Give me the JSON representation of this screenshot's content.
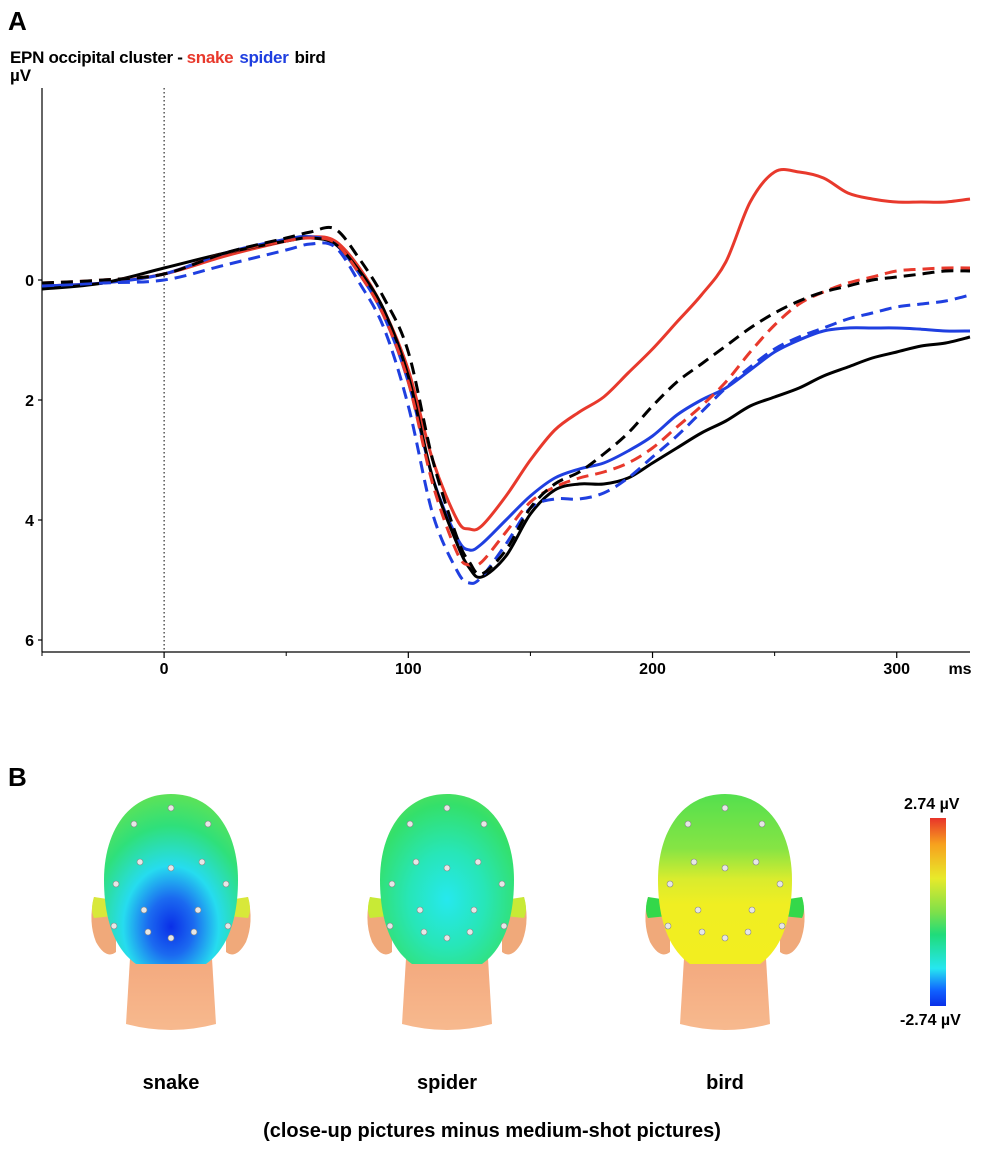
{
  "panel_a_label": "A",
  "panel_b_label": "B",
  "chart_title": {
    "prefix": "EPN occipital cluster -",
    "snake": "snake",
    "spider": "spider",
    "bird": "bird"
  },
  "colors": {
    "snake": "#e8392c",
    "spider": "#1f3fe0",
    "bird": "#000000"
  },
  "chart_data": {
    "type": "line",
    "title": "EPN occipital cluster - snake spider bird",
    "ylabel": "µV",
    "xunit": "ms",
    "x_ticks": [
      "0",
      "100",
      "200",
      "300"
    ],
    "y_ticks": [
      "0",
      "2",
      "4",
      "6"
    ],
    "xlim": [
      -50,
      330
    ],
    "ylim": [
      -3.2,
      6.2
    ],
    "y_inverted": true,
    "note_linestyle": "solid = close-up, dashed = medium-shot",
    "series": [
      {
        "name": "snake",
        "color": "#e8392c",
        "dash": false,
        "x": [
          -50,
          -25,
          0,
          25,
          50,
          60,
          70,
          80,
          90,
          100,
          110,
          120,
          125,
          130,
          140,
          150,
          160,
          170,
          180,
          190,
          200,
          210,
          220,
          230,
          240,
          250,
          260,
          270,
          280,
          290,
          300,
          310,
          320,
          330
        ],
        "y": [
          0.1,
          0.05,
          -0.1,
          -0.4,
          -0.65,
          -0.72,
          -0.65,
          -0.2,
          0.5,
          1.5,
          3.0,
          4.0,
          4.15,
          4.1,
          3.6,
          3.0,
          2.5,
          2.2,
          1.95,
          1.55,
          1.15,
          0.7,
          0.25,
          -0.3,
          -1.3,
          -1.8,
          -1.8,
          -1.7,
          -1.45,
          -1.35,
          -1.3,
          -1.3,
          -1.3,
          -1.35
        ]
      },
      {
        "name": "spider",
        "color": "#1f3fe0",
        "dash": false,
        "x": [
          -50,
          -25,
          0,
          25,
          50,
          60,
          70,
          80,
          90,
          100,
          110,
          120,
          125,
          130,
          140,
          150,
          160,
          170,
          180,
          190,
          200,
          210,
          220,
          230,
          240,
          250,
          260,
          270,
          280,
          290,
          300,
          310,
          320,
          330
        ],
        "y": [
          0.1,
          0.05,
          -0.1,
          -0.45,
          -0.68,
          -0.72,
          -0.6,
          -0.1,
          0.6,
          1.7,
          3.3,
          4.3,
          4.5,
          4.4,
          4.0,
          3.6,
          3.3,
          3.15,
          3.05,
          2.85,
          2.6,
          2.25,
          2.0,
          1.8,
          1.5,
          1.2,
          1.0,
          0.85,
          0.8,
          0.8,
          0.8,
          0.82,
          0.85,
          0.85
        ]
      },
      {
        "name": "bird",
        "color": "#000000",
        "dash": false,
        "x": [
          -50,
          -25,
          0,
          25,
          50,
          60,
          70,
          80,
          90,
          100,
          110,
          120,
          125,
          130,
          140,
          150,
          160,
          170,
          180,
          190,
          200,
          210,
          220,
          230,
          240,
          250,
          260,
          270,
          280,
          290,
          300,
          310,
          320,
          330
        ],
        "y": [
          0.15,
          0.05,
          -0.2,
          -0.45,
          -0.65,
          -0.7,
          -0.6,
          -0.15,
          0.5,
          1.6,
          3.3,
          4.4,
          4.8,
          4.95,
          4.6,
          3.9,
          3.5,
          3.4,
          3.4,
          3.3,
          3.05,
          2.8,
          2.55,
          2.35,
          2.1,
          1.95,
          1.8,
          1.6,
          1.45,
          1.3,
          1.2,
          1.1,
          1.05,
          0.95
        ]
      },
      {
        "name": "snake",
        "color": "#e8392c",
        "dash": true,
        "x": [
          -50,
          -25,
          0,
          25,
          50,
          60,
          70,
          80,
          90,
          100,
          110,
          120,
          125,
          130,
          140,
          150,
          160,
          170,
          180,
          190,
          200,
          210,
          220,
          230,
          240,
          250,
          260,
          270,
          280,
          290,
          300,
          310,
          320,
          330
        ],
        "y": [
          0.05,
          0.0,
          -0.1,
          -0.45,
          -0.65,
          -0.7,
          -0.62,
          -0.1,
          0.6,
          1.7,
          3.4,
          4.55,
          4.75,
          4.7,
          4.2,
          3.7,
          3.45,
          3.3,
          3.2,
          3.05,
          2.8,
          2.45,
          2.1,
          1.7,
          1.2,
          0.75,
          0.4,
          0.2,
          0.05,
          -0.05,
          -0.15,
          -0.18,
          -0.2,
          -0.2
        ]
      },
      {
        "name": "spider",
        "color": "#1f3fe0",
        "dash": true,
        "x": [
          -50,
          -25,
          0,
          25,
          50,
          60,
          70,
          80,
          90,
          100,
          110,
          120,
          125,
          130,
          140,
          150,
          160,
          170,
          180,
          190,
          200,
          210,
          220,
          230,
          240,
          250,
          260,
          270,
          280,
          290,
          300,
          310,
          320,
          330
        ],
        "y": [
          0.1,
          0.05,
          0.0,
          -0.25,
          -0.5,
          -0.6,
          -0.55,
          0.05,
          0.8,
          2.1,
          3.9,
          4.85,
          5.05,
          4.95,
          4.4,
          3.8,
          3.65,
          3.65,
          3.55,
          3.3,
          2.95,
          2.6,
          2.2,
          1.8,
          1.45,
          1.15,
          0.95,
          0.8,
          0.65,
          0.55,
          0.45,
          0.4,
          0.35,
          0.25
        ]
      },
      {
        "name": "bird",
        "color": "#000000",
        "dash": true,
        "x": [
          -50,
          -25,
          0,
          25,
          50,
          60,
          70,
          80,
          90,
          100,
          110,
          120,
          125,
          130,
          140,
          150,
          160,
          170,
          180,
          190,
          200,
          210,
          220,
          230,
          240,
          250,
          260,
          270,
          280,
          290,
          300,
          310,
          320,
          330
        ],
        "y": [
          0.05,
          0.0,
          -0.1,
          -0.45,
          -0.7,
          -0.8,
          -0.85,
          -0.35,
          0.3,
          1.2,
          3.0,
          4.3,
          4.7,
          4.9,
          4.5,
          3.8,
          3.4,
          3.2,
          2.9,
          2.55,
          2.1,
          1.7,
          1.4,
          1.1,
          0.8,
          0.55,
          0.35,
          0.2,
          0.1,
          0.0,
          -0.05,
          -0.1,
          -0.15,
          -0.15
        ]
      }
    ]
  },
  "topomaps": {
    "heads": [
      {
        "label": "snake",
        "pattern": "strong-negative"
      },
      {
        "label": "spider",
        "pattern": "mild-negative"
      },
      {
        "label": "bird",
        "pattern": "positive"
      }
    ],
    "colorbar_max": "2.74 µV",
    "colorbar_min": "-2.74 µV",
    "caption": "(close-up pictures minus medium-shot pictures)"
  }
}
